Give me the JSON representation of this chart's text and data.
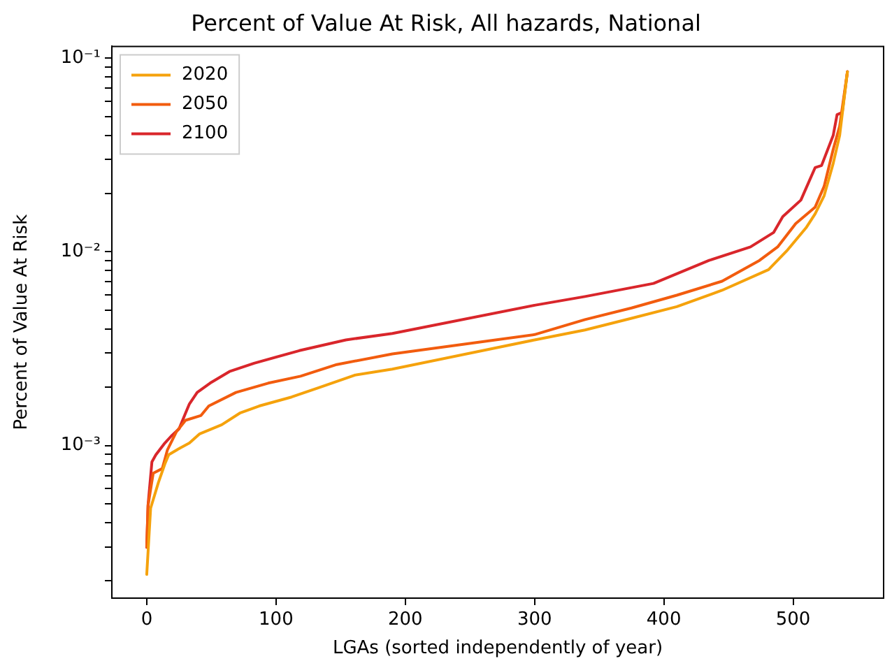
{
  "chart_data": {
    "type": "line",
    "title": "Percent of Value At Risk, All hazards, National",
    "xlabel": "LGAs (sorted independently of year)",
    "ylabel": "Percent of Value At Risk",
    "log": "y",
    "legend": "top left",
    "grid": false,
    "xlim": [
      -27,
      570
    ],
    "xticks": [
      0,
      100,
      200,
      300,
      400,
      500
    ],
    "ylim": [
      0.000163,
      0.115
    ],
    "yticks": [
      {
        "value": 0.0002,
        "label": null
      },
      {
        "value": 0.0003,
        "label": null
      },
      {
        "value": 0.0004,
        "label": null
      },
      {
        "value": 0.0005,
        "label": null
      },
      {
        "value": 0.0006,
        "label": null
      },
      {
        "value": 0.0007,
        "label": null
      },
      {
        "value": 0.0008,
        "label": null
      },
      {
        "value": 0.0009,
        "label": null
      },
      {
        "value": 0.001,
        "label": "10⁻³"
      },
      {
        "value": 0.002,
        "label": null
      },
      {
        "value": 0.003,
        "label": null
      },
      {
        "value": 0.004,
        "label": null
      },
      {
        "value": 0.005,
        "label": null
      },
      {
        "value": 0.006,
        "label": null
      },
      {
        "value": 0.007,
        "label": null
      },
      {
        "value": 0.008,
        "label": null
      },
      {
        "value": 0.009,
        "label": null
      },
      {
        "value": 0.01,
        "label": "10⁻²"
      },
      {
        "value": 0.02,
        "label": null
      },
      {
        "value": 0.03,
        "label": null
      },
      {
        "value": 0.04,
        "label": null
      },
      {
        "value": 0.05,
        "label": null
      },
      {
        "value": 0.06,
        "label": null
      },
      {
        "value": 0.07,
        "label": null
      },
      {
        "value": 0.08,
        "label": null
      },
      {
        "value": 0.09,
        "label": null
      },
      {
        "value": 0.1,
        "label": "10⁻¹"
      }
    ],
    "series": [
      {
        "name": "2020",
        "color": "#f5a20c",
        "x": [
          0,
          1,
          3,
          9,
          14,
          17,
          26,
          33,
          41,
          58,
          72,
          87,
          112,
          133,
          161,
          190,
          300,
          339,
          375,
          410,
          445,
          481,
          495,
          510,
          517,
          524,
          531,
          536,
          542
        ],
        "values": [
          0.000216,
          0.000282,
          0.000475,
          0.000644,
          0.000803,
          0.000897,
          0.000973,
          0.00103,
          0.00115,
          0.00128,
          0.00147,
          0.0016,
          0.00178,
          0.00199,
          0.00231,
          0.00248,
          0.00351,
          0.00395,
          0.00454,
          0.00521,
          0.00633,
          0.00809,
          0.0101,
          0.0133,
          0.0157,
          0.0195,
          0.0286,
          0.0399,
          0.085
        ]
      },
      {
        "name": "2050",
        "color": "#f25c0e",
        "x": [
          0,
          1,
          5,
          12,
          16,
          23,
          30,
          42,
          48,
          69,
          94,
          119,
          147,
          190,
          300,
          339,
          375,
          410,
          445,
          474,
          488,
          502,
          517,
          524,
          531,
          536,
          542
        ],
        "values": [
          0.0003,
          0.00049,
          0.00072,
          0.00076,
          0.00095,
          0.00118,
          0.00135,
          0.00143,
          0.0016,
          0.00188,
          0.0021,
          0.00228,
          0.00262,
          0.00297,
          0.00374,
          0.00447,
          0.00513,
          0.00597,
          0.00705,
          0.00903,
          0.0106,
          0.014,
          0.017,
          0.0218,
          0.0338,
          0.0446,
          0.085
        ]
      },
      {
        "name": "2100",
        "color": "#d9262b",
        "x": [
          0,
          1,
          4,
          7,
          14,
          19,
          25,
          30,
          33,
          39,
          49,
          64,
          83,
          118,
          154,
          190,
          300,
          339,
          392,
          435,
          467,
          485,
          492,
          506,
          517,
          522,
          531,
          534,
          538,
          542
        ],
        "values": [
          0.000298,
          0.000492,
          0.000824,
          0.000895,
          0.00103,
          0.00112,
          0.00122,
          0.00147,
          0.00164,
          0.00188,
          0.0021,
          0.00241,
          0.00266,
          0.00309,
          0.00351,
          0.00379,
          0.0053,
          0.00588,
          0.00687,
          0.00903,
          0.0106,
          0.0126,
          0.0152,
          0.0185,
          0.0272,
          0.0279,
          0.0399,
          0.0511,
          0.0525,
          0.0852
        ]
      }
    ]
  }
}
